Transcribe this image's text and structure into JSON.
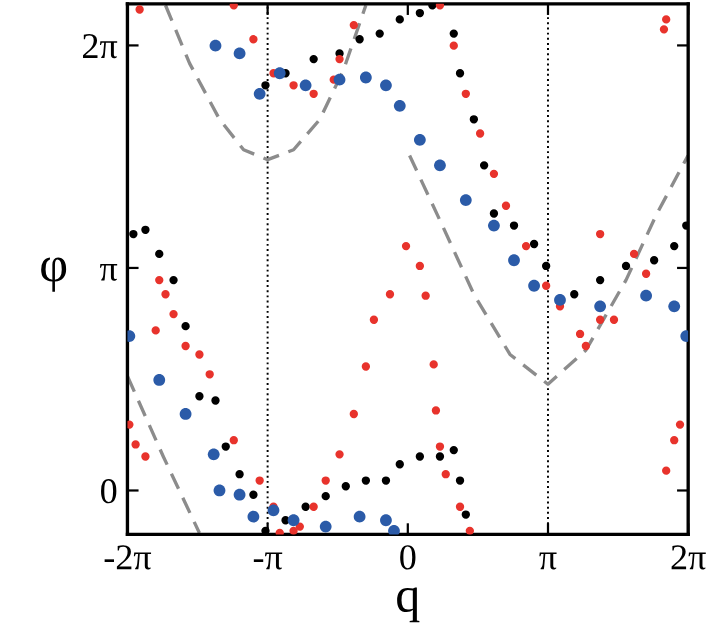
{
  "chart_data": {
    "type": "scatter",
    "xlabel": "q",
    "ylabel": "φ",
    "marker": "circle",
    "xlim": [
      -6.283,
      6.283
    ],
    "ylim": [
      -0.62,
      6.87
    ],
    "xticks": [
      {
        "value": -6.283,
        "label": "-2π"
      },
      {
        "value": -3.1416,
        "label": "-π"
      },
      0,
      {
        "value": 3.1416,
        "label": "π"
      },
      {
        "value": 6.283,
        "label": "2π"
      }
    ],
    "yticks": [
      0,
      {
        "value": 3.1416,
        "label": "π"
      },
      {
        "value": 6.283,
        "label": "2π"
      }
    ],
    "ref_lines": [
      {
        "axis": "x",
        "value": -3.1416,
        "color": "#000000",
        "line_style": "dotted"
      },
      {
        "axis": "x",
        "value": 3.1416,
        "color": "#000000",
        "line_style": "dotted"
      }
    ],
    "series": [
      {
        "type": "line",
        "line_style": "dashed",
        "marker": "none",
        "color": "#8c8c8c",
        "x": [
          -6.28,
          -5.48,
          -4.67,
          null,
          -5.43,
          -4.89,
          -4.22,
          -3.68,
          -3.14,
          -2.56,
          -1.97,
          -1.44,
          -0.94,
          null,
          0.04,
          0.76,
          1.48,
          2.29,
          3.14,
          3.99,
          4.89,
          5.56,
          6.28
        ],
        "values": [
          1.61,
          0.48,
          -0.6,
          null,
          6.85,
          6.03,
          5.24,
          4.81,
          4.67,
          4.81,
          5.24,
          5.94,
          6.85,
          null,
          4.73,
          3.76,
          2.77,
          1.92,
          1.5,
          1.98,
          2.97,
          3.88,
          4.73
        ]
      },
      {
        "color": "#000000",
        "x": [
          -3.19,
          -2.74,
          -2.11,
          -1.53,
          -1.08,
          -0.63,
          -0.18,
          0.27,
          0.55,
          1.03,
          1.17,
          1.48,
          1.71,
          1.93,
          2.38,
          2.83,
          3.1,
          3.73,
          4.31,
          4.89,
          5.52,
          5.97,
          6.24,
          -6.15,
          -5.88,
          -5.57,
          -5.25,
          -4.98,
          -4.67,
          -4.31,
          -4.08,
          -3.77,
          -3.46,
          -3.19,
          -2.74,
          -2.29,
          -1.84,
          -1.39,
          -0.94,
          -0.49,
          -0.18,
          0.27,
          0.72,
          1.03,
          1.17,
          1.3
        ],
        "values": [
          5.72,
          5.89,
          6.09,
          6.17,
          6.37,
          6.45,
          6.65,
          6.74,
          6.85,
          6.45,
          5.89,
          5.24,
          4.59,
          3.91,
          3.74,
          3.48,
          3.17,
          2.77,
          2.97,
          3.17,
          3.25,
          3.45,
          3.74,
          3.62,
          3.68,
          3.34,
          2.97,
          2.32,
          1.33,
          1.27,
          0.62,
          0.23,
          -0.06,
          -0.57,
          -0.42,
          -0.23,
          -0.08,
          0.06,
          0.14,
          0.14,
          0.37,
          0.48,
          0.48,
          0.57,
          0.14,
          -0.34
        ]
      },
      {
        "color": "#e8332c",
        "x": [
          -6.01,
          -3.9,
          -3.46,
          -3.01,
          -2.56,
          -2.11,
          -1.66,
          -1.53,
          -1.21,
          0.72,
          1.03,
          1.3,
          1.62,
          1.93,
          2.2,
          2.65,
          3.1,
          3.41,
          3.86,
          3.99,
          4.31,
          4.62,
          4.31,
          5.07,
          5.34,
          5.79,
          5.74,
          6.1,
          5.97,
          5.79,
          -0.4,
          -0.04,
          0.27,
          0.4,
          0.58,
          0.63,
          0.72,
          0.85,
          1.17,
          1.39,
          -0.76,
          -0.94,
          -1.21,
          -1.53,
          -1.84,
          -2.11,
          -2.42,
          -2.87,
          -3.9,
          -3.32,
          -3.01,
          -2.56,
          -5.57,
          -5.25,
          -5.65,
          -4.98,
          -4.67,
          -4.44,
          -6.24,
          -6.1,
          -5.88,
          -5.43
        ],
        "values": [
          6.79,
          6.85,
          6.37,
          5.89,
          5.72,
          5.6,
          5.8,
          6.09,
          6.57,
          6.85,
          6.28,
          5.6,
          5.04,
          4.47,
          4.02,
          3.45,
          2.89,
          2.6,
          2.21,
          2.04,
          2.41,
          2.41,
          3.62,
          3.34,
          3.06,
          6.65,
          6.51,
          0.93,
          0.71,
          0.28,
          2.77,
          3.45,
          3.17,
          2.75,
          1.78,
          1.13,
          0.62,
          0.23,
          -0.23,
          -0.57,
          2.41,
          1.75,
          1.08,
          0.51,
          0.14,
          -0.23,
          -0.51,
          -0.6,
          0.71,
          0.14,
          -0.23,
          -0.57,
          2.97,
          2.49,
          2.26,
          2.04,
          1.92,
          1.64,
          0.93,
          0.65,
          0.48,
          2.77
        ]
      },
      {
        "color": "#2b5ba8",
        "x": [
          -4.31,
          -3.77,
          -3.32,
          -2.87,
          -2.29,
          -1.53,
          -0.94,
          -0.49,
          -0.18,
          0.27,
          0.72,
          1.3,
          1.93,
          2.38,
          2.83,
          3.41,
          4.31,
          5.34,
          5.97,
          6.24,
          -6.24,
          -5.57,
          -4.98,
          -4.35,
          -4.22,
          -3.77,
          -3.46,
          -3.01,
          -2.56,
          -1.84,
          -1.08,
          -0.49,
          -0.31
        ],
        "values": [
          6.28,
          6.17,
          5.6,
          5.89,
          5.72,
          5.8,
          5.83,
          5.72,
          5.43,
          4.95,
          4.59,
          4.1,
          3.74,
          3.25,
          2.89,
          2.69,
          2.6,
          2.75,
          2.6,
          2.18,
          2.18,
          1.56,
          1.08,
          0.51,
          0.0,
          -0.06,
          -0.37,
          -0.28,
          -0.42,
          -0.51,
          -0.37,
          -0.42,
          -0.57
        ]
      }
    ]
  }
}
